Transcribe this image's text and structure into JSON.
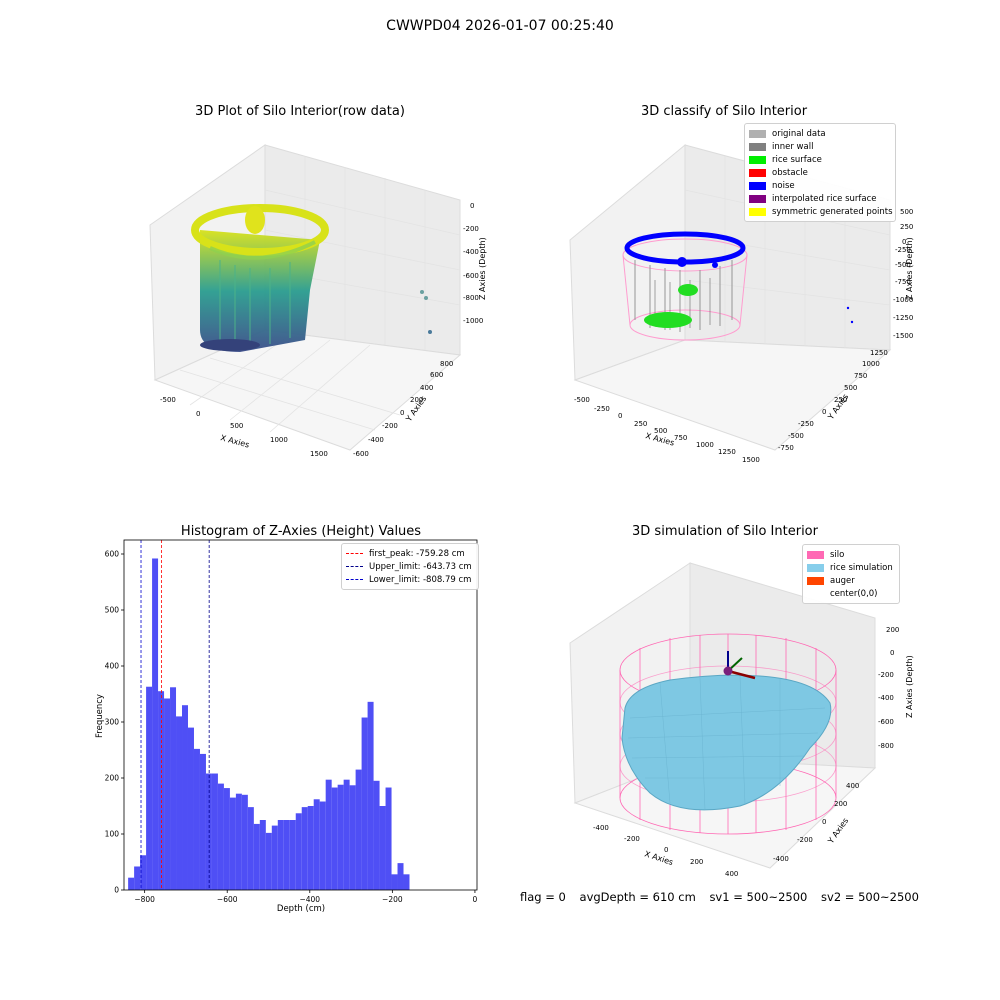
{
  "figure": {
    "suptitle": "CWWPD04 2026-01-07 00:25:40",
    "status": {
      "flag": "flag = 0",
      "avg_depth": "avgDepth = 610 cm",
      "sv1": "sv1 = 500~2500",
      "sv2": "sv2 = 500~2500"
    }
  },
  "colors": {
    "viridis_low": "#3b4d8a",
    "viridis_mid": "#2a9d8f",
    "viridis_high": "#d8e219",
    "hist_bar": "#4f4ff5",
    "silo": "#ff69b4",
    "rice": "#7ec8e3",
    "auger": "#ff4500",
    "inner_wall": "#808080",
    "rice_surface": "#00e000",
    "noise": "#0000ff"
  },
  "chart_data": [
    {
      "type": "scatter",
      "title": "3D Plot of Silo Interior(row data)",
      "xlabel": "X Axies",
      "ylabel": "Y Axies",
      "zlabel": "Z Axies (Depth)",
      "x_ticks": [
        "-500",
        "0",
        "500",
        "1000",
        "1500"
      ],
      "y_ticks": [
        "-600",
        "-400",
        "-200",
        "0",
        "200",
        "400",
        "600",
        "800"
      ],
      "z_ticks": [
        "-1000",
        "-800",
        "-600",
        "-400",
        "-200",
        "0"
      ]
    },
    {
      "type": "scatter",
      "title": "3D classify of Silo Interior",
      "xlabel": "X Axies",
      "ylabel": "Y Axies",
      "zlabel": "Z Axies (Depth)",
      "x_ticks": [
        "-500",
        "-250",
        "0",
        "250",
        "500",
        "750",
        "1000",
        "1250",
        "1500"
      ],
      "y_ticks": [
        "-750",
        "-500",
        "-250",
        "0",
        "250",
        "500",
        "750",
        "1000",
        "1250"
      ],
      "z_ticks": [
        "-1500",
        "-1250",
        "-1000",
        "-750",
        "-500",
        "-250",
        "0",
        "250",
        "500"
      ],
      "legend": [
        {
          "label": "original data",
          "color": "#b0b0b0"
        },
        {
          "label": "inner wall",
          "color": "#808080"
        },
        {
          "label": "rice surface",
          "color": "#00ee00"
        },
        {
          "label": "obstacle",
          "color": "#ff0000"
        },
        {
          "label": "noise",
          "color": "#0000ff"
        },
        {
          "label": "interpolated rice surface",
          "color": "#800080"
        },
        {
          "label": "symmetric generated points",
          "color": "#ffff00"
        }
      ]
    },
    {
      "type": "bar",
      "title": "Histogram of Z-Axies (Height) Values",
      "xlabel": "Depth (cm)",
      "ylabel": "Frequency",
      "xlim": [
        -850,
        5
      ],
      "ylim": [
        0,
        625
      ],
      "x_ticks": [
        -800,
        -600,
        -400,
        -200,
        0
      ],
      "y_ticks": [
        0,
        100,
        200,
        300,
        400,
        500,
        600
      ],
      "bin_start": -840,
      "bin_width": 14.5,
      "values": [
        22,
        42,
        62,
        363,
        592,
        355,
        342,
        362,
        310,
        330,
        290,
        252,
        243,
        208,
        208,
        190,
        182,
        165,
        172,
        170,
        148,
        118,
        125,
        102,
        115,
        125,
        125,
        125,
        137,
        148,
        150,
        162,
        158,
        197,
        183,
        188,
        197,
        187,
        215,
        308,
        336,
        195,
        150,
        183,
        28,
        48,
        28
      ],
      "vlines": [
        {
          "value": -759.28,
          "color": "#ff0000",
          "label": "first_peak: -759.28 cm"
        },
        {
          "value": -643.73,
          "color": "#00008b",
          "label": "Upper_limit: -643.73 cm"
        },
        {
          "value": -808.79,
          "color": "#0000cd",
          "label": "Lower_limit: -808.79 cm"
        }
      ]
    },
    {
      "type": "scatter",
      "title": "3D simulation of Silo Interior",
      "xlabel": "X Axies",
      "ylabel": "Y Axies",
      "zlabel": "Z Axies (Depth)",
      "x_ticks": [
        "-400",
        "-200",
        "0",
        "200",
        "400"
      ],
      "y_ticks": [
        "-400",
        "-200",
        "0",
        "200",
        "400"
      ],
      "z_ticks": [
        "-800",
        "-600",
        "-400",
        "-200",
        "0",
        "200"
      ],
      "legend": [
        {
          "label": "silo",
          "color": "#ff69b4"
        },
        {
          "label": "rice simulation",
          "color": "#87ceeb"
        },
        {
          "label": "auger",
          "color": "#ff4500"
        },
        {
          "label": "center(0,0)",
          "color": "#ffffff"
        }
      ]
    }
  ]
}
